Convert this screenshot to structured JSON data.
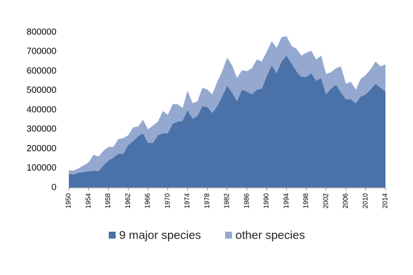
{
  "chart_data": {
    "type": "area",
    "x": [
      1950,
      1951,
      1952,
      1953,
      1954,
      1955,
      1956,
      1957,
      1958,
      1959,
      1960,
      1961,
      1962,
      1963,
      1964,
      1965,
      1966,
      1967,
      1968,
      1969,
      1970,
      1971,
      1972,
      1973,
      1974,
      1975,
      1976,
      1977,
      1978,
      1979,
      1980,
      1981,
      1982,
      1983,
      1984,
      1985,
      1986,
      1987,
      1988,
      1989,
      1990,
      1991,
      1992,
      1993,
      1994,
      1995,
      1996,
      1997,
      1998,
      1999,
      2000,
      2001,
      2002,
      2003,
      2004,
      2005,
      2006,
      2007,
      2008,
      2009,
      2010,
      2011,
      2012,
      2013,
      2014
    ],
    "series": [
      {
        "name": "9 major species",
        "color": "#4a72a8",
        "values": [
          70000,
          68000,
          78000,
          80000,
          85000,
          88000,
          85000,
          115000,
          140000,
          155000,
          175000,
          175000,
          220000,
          240000,
          265000,
          280000,
          230000,
          230000,
          270000,
          280000,
          280000,
          330000,
          340000,
          345000,
          400000,
          355000,
          370000,
          420000,
          415000,
          385000,
          420000,
          470000,
          525000,
          490000,
          445000,
          505000,
          495000,
          480000,
          505000,
          510000,
          575000,
          630000,
          590000,
          650000,
          680000,
          640000,
          600000,
          570000,
          570000,
          590000,
          550000,
          565000,
          480000,
          510000,
          530000,
          490000,
          455000,
          455000,
          435000,
          470000,
          480000,
          505000,
          535000,
          515000,
          495000
        ]
      },
      {
        "name": "other species",
        "color": "#95a8d0",
        "values": [
          20000,
          20000,
          22000,
          35000,
          45000,
          82000,
          75000,
          75000,
          70000,
          55000,
          75000,
          80000,
          50000,
          70000,
          50000,
          70000,
          70000,
          90000,
          70000,
          115000,
          95000,
          100000,
          90000,
          65000,
          100000,
          80000,
          75000,
          95000,
          90000,
          95000,
          125000,
          130000,
          145000,
          140000,
          120000,
          100000,
          105000,
          135000,
          155000,
          140000,
          125000,
          125000,
          130000,
          125000,
          100000,
          90000,
          115000,
          110000,
          125000,
          115000,
          110000,
          115000,
          105000,
          85000,
          85000,
          135000,
          80000,
          90000,
          70000,
          90000,
          100000,
          105000,
          115000,
          110000,
          140000
        ]
      }
    ],
    "xlim": [
      1950,
      2014
    ],
    "xticks": [
      1950,
      1954,
      1958,
      1962,
      1966,
      1970,
      1974,
      1978,
      1982,
      1986,
      1990,
      1994,
      1998,
      2002,
      2006,
      2010,
      2014
    ],
    "ylim": [
      0,
      800000
    ],
    "yticks": [
      0,
      100000,
      200000,
      300000,
      400000,
      500000,
      600000,
      700000,
      800000
    ],
    "stacked": true
  }
}
